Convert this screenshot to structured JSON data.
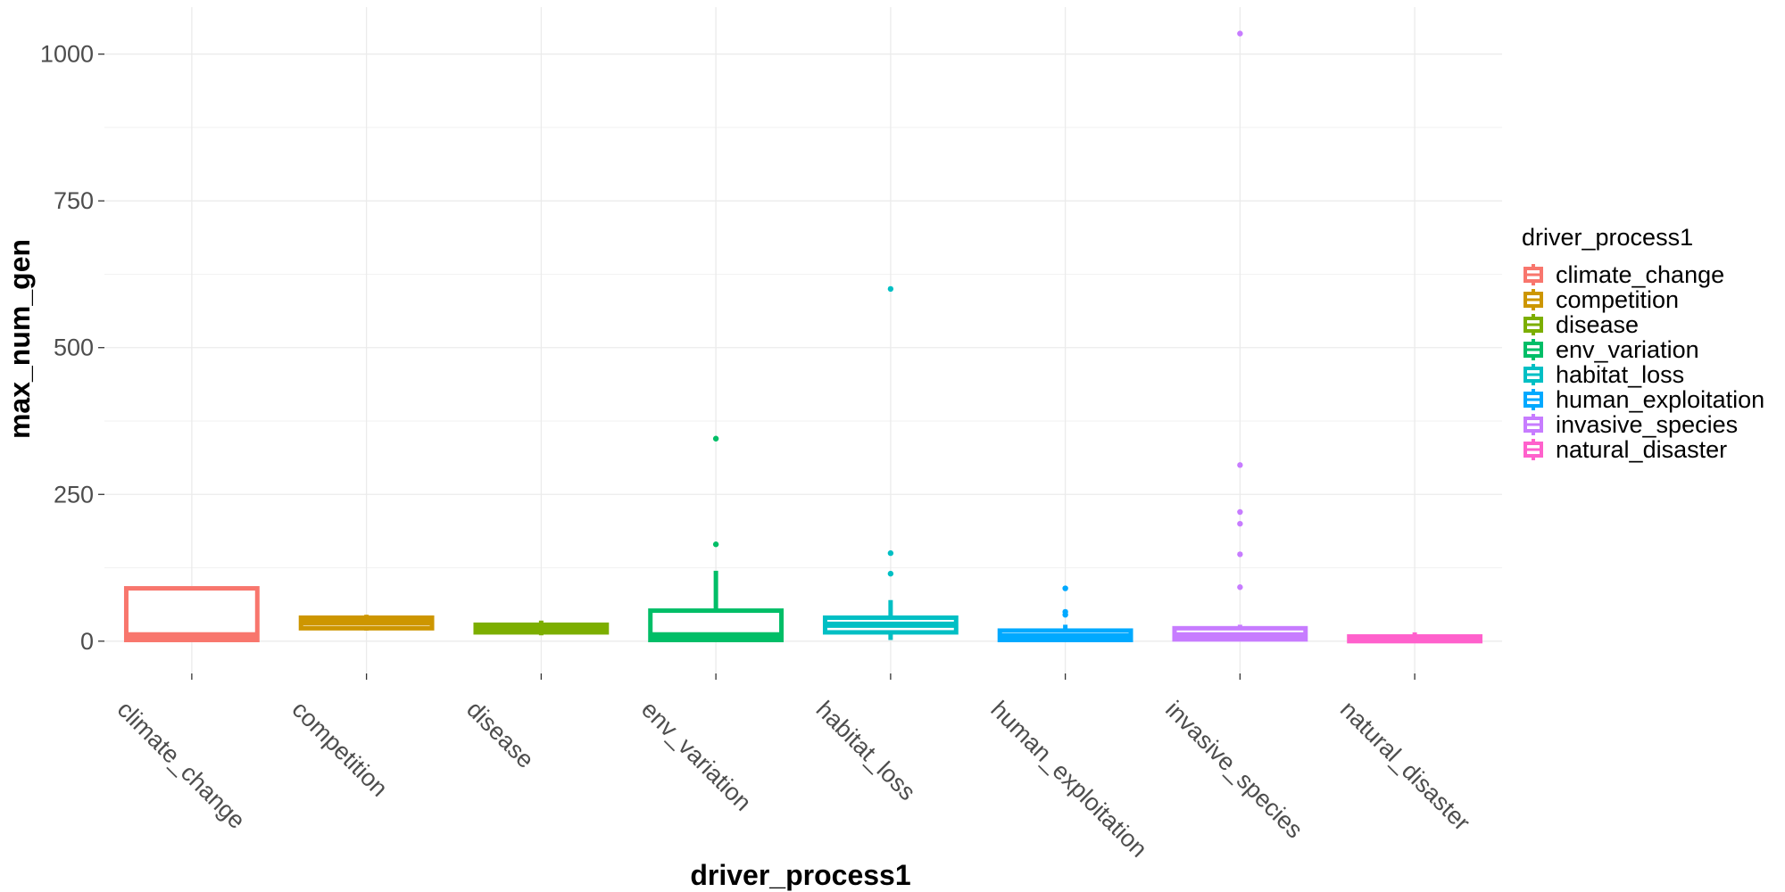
{
  "chart_data": {
    "type": "boxplot",
    "xlabel": "driver_process1",
    "ylabel": "max_num_gen",
    "ylim": [
      -55,
      1080
    ],
    "yticks": [
      0,
      250,
      500,
      750,
      1000
    ],
    "grid": true,
    "legend": {
      "title": "driver_process1",
      "position": "right"
    },
    "categories": [
      "climate_change",
      "competition",
      "disease",
      "env_variation",
      "habitat_loss",
      "human_exploitation",
      "invasive_species",
      "natural_disaster"
    ],
    "colors": [
      "#F8766D",
      "#CD9600",
      "#7CAE00",
      "#00BE67",
      "#00BFC4",
      "#00A9FF",
      "#C77CFF",
      "#FF61CC"
    ],
    "series": [
      {
        "name": "climate_change",
        "min": 2,
        "q1": 2,
        "median": 10,
        "q3": 90,
        "max": 92,
        "outliers": []
      },
      {
        "name": "competition",
        "min": 18,
        "q1": 22,
        "median": 32,
        "q3": 40,
        "max": 45,
        "outliers": []
      },
      {
        "name": "disease",
        "min": 10,
        "q1": 15,
        "median": 22,
        "q3": 28,
        "max": 35,
        "outliers": []
      },
      {
        "name": "env_variation",
        "min": 0,
        "q1": 2,
        "median": 10,
        "q3": 52,
        "max": 120,
        "outliers": [
          165,
          345
        ]
      },
      {
        "name": "habitat_loss",
        "min": 2,
        "q1": 15,
        "median": 28,
        "q3": 40,
        "max": 70,
        "outliers": [
          115,
          150,
          600
        ]
      },
      {
        "name": "human_exploitation",
        "min": 0,
        "q1": 2,
        "median": 8,
        "q3": 18,
        "max": 28,
        "outliers": [
          45,
          50,
          90
        ]
      },
      {
        "name": "invasive_species",
        "min": 0,
        "q1": 3,
        "median": 10,
        "q3": 22,
        "max": 28,
        "outliers": [
          92,
          148,
          200,
          220,
          300,
          1035
        ]
      },
      {
        "name": "natural_disaster",
        "min": 0,
        "q1": 0,
        "median": 3,
        "q3": 8,
        "max": 15,
        "outliers": []
      }
    ]
  }
}
